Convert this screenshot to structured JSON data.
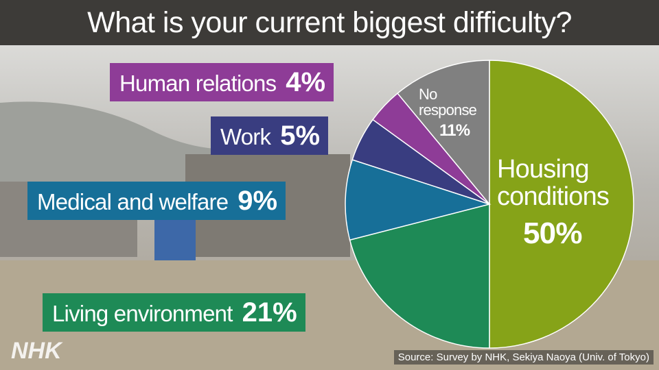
{
  "chart_data": {
    "type": "pie",
    "title": "What is your current biggest difficulty?",
    "categories": [
      "Housing conditions",
      "Living environment",
      "Medical and welfare",
      "Work",
      "Human relations",
      "No response"
    ],
    "values": [
      50,
      21,
      9,
      5,
      4,
      11
    ],
    "value_labels": [
      "50%",
      "21%",
      "9%",
      "5%",
      "4%",
      "11%"
    ],
    "colors": [
      "#86a318",
      "#1e8a56",
      "#176f98",
      "#393d80",
      "#8e3c97",
      "#808080"
    ]
  },
  "source": "Source: Survey by NHK, Sekiya Naoya (Univ. of Tokyo)",
  "logo": "NHK"
}
